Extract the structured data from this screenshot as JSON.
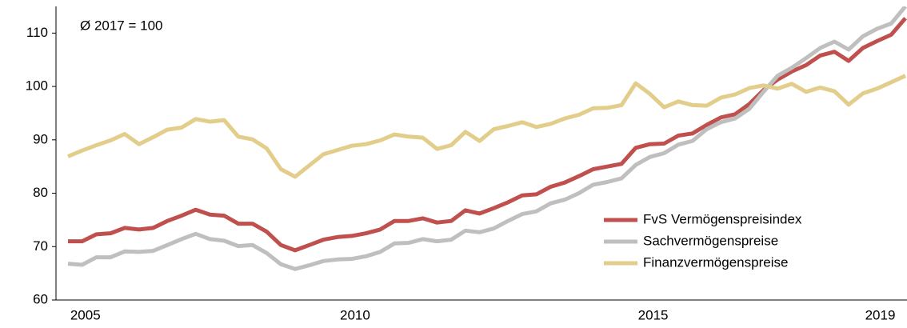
{
  "chart_data": {
    "type": "line",
    "annotation": "Ø 2017 = 100",
    "categories": [
      null,
      "2005",
      null,
      null,
      null,
      null,
      null,
      null,
      null,
      null,
      null,
      null,
      null,
      null,
      null,
      null,
      null,
      null,
      null,
      null,
      "2010",
      null,
      null,
      null,
      null,
      null,
      null,
      null,
      null,
      null,
      null,
      null,
      null,
      null,
      null,
      null,
      null,
      null,
      null,
      null,
      null,
      "2015",
      null,
      null,
      null,
      null,
      null,
      null,
      null,
      null,
      null,
      null,
      null,
      null,
      null,
      null,
      null,
      "2019",
      null,
      null
    ],
    "series": [
      {
        "name": "FvS Vermögenspreisindex",
        "color": "#c0504d",
        "values": [
          71,
          71,
          72.3,
          72.5,
          73.5,
          73.2,
          73.5,
          74.8,
          75.8,
          76.9,
          76,
          75.8,
          74.3,
          74.3,
          72.8,
          70.3,
          69.3,
          70.3,
          71.3,
          71.8,
          72,
          72.5,
          73.2,
          74.8,
          74.8,
          75.3,
          74.5,
          74.8,
          76.8,
          76.2,
          77.2,
          78.3,
          79.6,
          79.8,
          81.2,
          82,
          83.2,
          84.5,
          85,
          85.5,
          88.5,
          89.2,
          89.3,
          90.8,
          91.2,
          92.8,
          94.2,
          94.8,
          96.7,
          99.3,
          101.3,
          102.8,
          104,
          105.8,
          106.5,
          104.8,
          107.2,
          108.5,
          109.7,
          112.8
        ]
      },
      {
        "name": "Sachvermögenspreise",
        "color": "#bfbfbf",
        "values": [
          66.8,
          66.6,
          68,
          68,
          69.1,
          69,
          69.2,
          70.3,
          71.4,
          72.4,
          71.4,
          71.1,
          70.1,
          70.3,
          68.8,
          66.7,
          65.8,
          66.5,
          67.3,
          67.6,
          67.7,
          68.2,
          69,
          70.6,
          70.7,
          71.4,
          71,
          71.3,
          73,
          72.7,
          73.4,
          74.8,
          76.1,
          76.6,
          78.1,
          78.8,
          80,
          81.6,
          82.1,
          82.8,
          85.3,
          86.8,
          87.5,
          89.1,
          89.8,
          92,
          93.3,
          94,
          95.8,
          99,
          102,
          103.5,
          105.3,
          107.2,
          108.4,
          106.9,
          109.4,
          110.8,
          111.8,
          115
        ]
      },
      {
        "name": "Finanzvermögenspreise",
        "color": "#e3cd8a",
        "values": [
          86.9,
          88,
          89,
          89.9,
          91.1,
          89.2,
          90.5,
          91.9,
          92.3,
          93.9,
          93.4,
          93.7,
          90.6,
          90.1,
          88.4,
          84.5,
          83.1,
          85.2,
          87.3,
          88.1,
          88.9,
          89.2,
          89.9,
          91,
          90.6,
          90.4,
          88.3,
          89,
          91.5,
          89.8,
          92,
          92.6,
          93.3,
          92.4,
          93,
          94,
          94.7,
          95.9,
          96,
          96.5,
          100.6,
          98.6,
          96.1,
          97.2,
          96.5,
          96.4,
          97.9,
          98.5,
          99.7,
          100.2,
          99.6,
          100.5,
          99,
          99.8,
          99.1,
          96.6,
          98.7,
          99.6,
          100.8,
          102
        ]
      }
    ],
    "ylim": [
      60,
      115
    ],
    "yticks": [
      60,
      70,
      80,
      90,
      100,
      110
    ],
    "legend": "lower right"
  }
}
